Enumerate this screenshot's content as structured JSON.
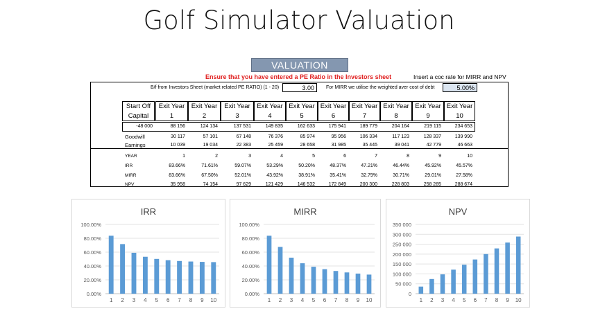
{
  "page": {
    "title": "Golf Simulator Valuation"
  },
  "sheet": {
    "header": "VALUATION",
    "warning": "Ensure that you have entered a PE Ratio in the Investors sheet",
    "coc_label": "Insert a coc rate for MIRR and NPV",
    "pe_label": "B/f from Investors Sheet (market related PE RATIO) (1 - 20)",
    "pe_value": "3.00",
    "mirr_note": "For MIRR we utilise the weighted aver cost of debt",
    "coc_value": "5.00%",
    "col0_line1": "Start Off",
    "col0_line2": "Capital",
    "exit_label": "Exit Year",
    "exit_years": [
      "1",
      "2",
      "3",
      "4",
      "5",
      "6",
      "7",
      "8",
      "9",
      "10"
    ],
    "start_capital": "-48 000",
    "row_values": [
      "88 156",
      "124 134",
      "137 531",
      "149 835",
      "162 633",
      "175 941",
      "189 779",
      "204 164",
      "219 115",
      "234 653"
    ],
    "goodwill_label": "Goodwill",
    "goodwill": [
      "30 117",
      "57 101",
      "67 148",
      "76 376",
      "85 974",
      "95 956",
      "106 334",
      "117 123",
      "128 337",
      "139 990"
    ],
    "earnings_label": "Earnings",
    "earnings": [
      "10 039",
      "19 034",
      "22 383",
      "25 459",
      "28 658",
      "31 985",
      "35 445",
      "39 041",
      "42 779",
      "46 663"
    ],
    "year_label": "YEAR",
    "years": [
      "1",
      "2",
      "3",
      "4",
      "5",
      "6",
      "7",
      "8",
      "9",
      "10"
    ],
    "irr_label": "IRR",
    "irr": [
      "83.66%",
      "71.61%",
      "59.07%",
      "53.29%",
      "50.20%",
      "48.37%",
      "47.21%",
      "46.44%",
      "45.92%",
      "45.57%"
    ],
    "mirr_label": "MIRR",
    "mirr": [
      "83.66%",
      "67.50%",
      "52.01%",
      "43.92%",
      "38.91%",
      "35.41%",
      "32.79%",
      "30.71%",
      "29.01%",
      "27.58%"
    ],
    "npv_label": "NPV",
    "npv": [
      "35 958",
      "74 154",
      "97 629",
      "121 429",
      "146 532",
      "172 849",
      "200 300",
      "228 803",
      "258 285",
      "288 674"
    ]
  },
  "chart_data": [
    {
      "type": "bar",
      "title": "IRR",
      "categories": [
        "1",
        "2",
        "3",
        "4",
        "5",
        "6",
        "7",
        "8",
        "9",
        "10"
      ],
      "values": [
        83.66,
        71.61,
        59.07,
        53.29,
        50.2,
        48.37,
        47.21,
        46.44,
        45.92,
        45.57
      ],
      "ylim": [
        0,
        100
      ],
      "yticks": [
        "0.00%",
        "20.00%",
        "40.00%",
        "60.00%",
        "80.00%",
        "100.00%"
      ],
      "color": "#5b9bd5",
      "grid": true
    },
    {
      "type": "bar",
      "title": "MIRR",
      "categories": [
        "1",
        "2",
        "3",
        "4",
        "5",
        "6",
        "7",
        "8",
        "9",
        "10"
      ],
      "values": [
        83.66,
        67.5,
        52.01,
        43.92,
        38.91,
        35.41,
        32.79,
        30.71,
        29.01,
        27.58
      ],
      "ylim": [
        0,
        100
      ],
      "yticks": [
        "0.00%",
        "20.00%",
        "40.00%",
        "60.00%",
        "80.00%",
        "100.00%"
      ],
      "color": "#5b9bd5",
      "grid": true
    },
    {
      "type": "bar",
      "title": "NPV",
      "categories": [
        "1",
        "2",
        "3",
        "4",
        "5",
        "6",
        "7",
        "8",
        "9",
        "10"
      ],
      "values": [
        35958,
        74154,
        97629,
        121429,
        146532,
        172849,
        200300,
        228803,
        258285,
        288674
      ],
      "ylim": [
        0,
        350000
      ],
      "yticks": [
        "0",
        "50 000",
        "100 000",
        "150 000",
        "200 000",
        "250 000",
        "300 000",
        "350 000"
      ],
      "color": "#5b9bd5",
      "grid": true
    }
  ]
}
